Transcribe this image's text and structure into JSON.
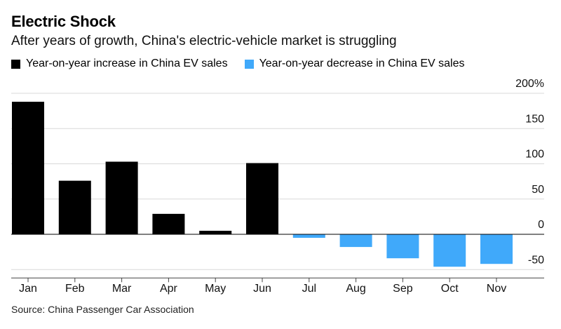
{
  "header": {
    "title": "Electric Shock",
    "subtitle": "After years of growth, China's electric-vehicle market is struggling"
  },
  "legend": [
    {
      "label": "Year-on-year increase in China EV sales",
      "color": "#000000"
    },
    {
      "label": "Year-on-year decrease in China EV sales",
      "color": "#40a9fa"
    }
  ],
  "footer": {
    "source": "Source: China Passenger Car Association"
  },
  "chart_data": {
    "type": "bar",
    "categories": [
      "Jan",
      "Feb",
      "Mar",
      "Apr",
      "May",
      "Jun",
      "Jul",
      "Aug",
      "Sep",
      "Oct",
      "Nov"
    ],
    "values": [
      188,
      76,
      103,
      29,
      5,
      101,
      -5,
      -18,
      -34,
      -46,
      -42
    ],
    "ylim": [
      -62,
      200
    ],
    "yticks": [
      200,
      150,
      100,
      50,
      0,
      -50
    ],
    "ytick_labels": [
      "200%",
      "150",
      "100",
      "50",
      "0",
      "-50"
    ],
    "positive_color": "#000000",
    "negative_color": "#40a9fa",
    "grid": true,
    "legend_position": "top-left"
  }
}
